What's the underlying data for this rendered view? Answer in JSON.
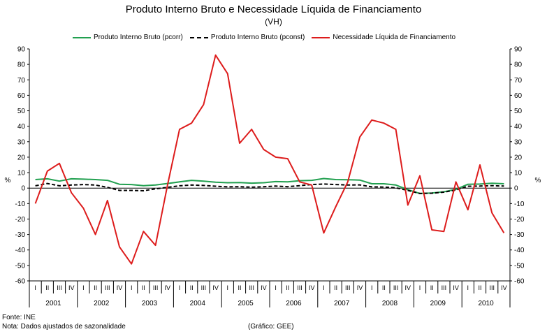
{
  "chart_data": {
    "type": "line",
    "title": "Produto Interno Bruto e Necessidade Líquida de Financiamento",
    "subtitle": "(VH)",
    "ylabel_left": "%",
    "ylabel_right": "%",
    "ylim": [
      -60,
      90
    ],
    "ytick_step": 10,
    "grid": false,
    "legend_position": "top",
    "quarters": [
      "I",
      "II",
      "III",
      "IV"
    ],
    "years": [
      "2001",
      "2002",
      "2003",
      "2004",
      "2005",
      "2006",
      "2007",
      "2008",
      "2009",
      "2010"
    ],
    "series": [
      {
        "name": "Produto Interno Bruto (pcorr)",
        "color": "#22a050",
        "style": "solid",
        "values": [
          5.5,
          6.0,
          4.5,
          6.0,
          5.8,
          5.5,
          5.0,
          2.5,
          2.3,
          1.6,
          2.0,
          3.0,
          4.0,
          5.0,
          4.5,
          3.8,
          3.5,
          3.6,
          3.2,
          3.5,
          4.2,
          4.0,
          4.8,
          5.0,
          6.2,
          5.5,
          5.4,
          5.2,
          2.8,
          2.8,
          2.0,
          -1.0,
          -3.5,
          -3.2,
          -2.4,
          -0.8,
          2.5,
          2.6,
          3.1,
          2.8
        ]
      },
      {
        "name": "Produto Interno Bruto (pconst)",
        "color": "#000000",
        "style": "dashed",
        "values": [
          1.5,
          3.0,
          1.5,
          2.0,
          2.3,
          2.0,
          0.5,
          -1.5,
          -1.5,
          -1.7,
          -0.5,
          0.5,
          1.5,
          2.0,
          1.7,
          1.2,
          0.8,
          0.9,
          0.6,
          0.9,
          1.3,
          0.9,
          1.6,
          2.3,
          2.6,
          2.3,
          2.0,
          2.1,
          0.8,
          0.7,
          0.2,
          -1.5,
          -3.5,
          -3.3,
          -2.6,
          -1.2,
          1.2,
          1.3,
          1.6,
          1.3
        ]
      },
      {
        "name": "Necessidade Líquida de Financiamento",
        "color": "#dd1c1c",
        "style": "solid",
        "values": [
          -10,
          11,
          16,
          -3,
          -13,
          -30,
          -8,
          -38,
          -49,
          -28,
          -37,
          2,
          38,
          42,
          54,
          86,
          74,
          29,
          38,
          25,
          20,
          19,
          4,
          2,
          -29,
          -12,
          4,
          33,
          44,
          42,
          38,
          -11,
          8,
          -27,
          -28,
          4,
          -14,
          15,
          -16,
          -29
        ]
      }
    ]
  },
  "footer": {
    "source": "Fonte: INE",
    "note": "Nota: Dados ajustados de sazonalidade",
    "credit": "(Gráfico: GEE)"
  }
}
